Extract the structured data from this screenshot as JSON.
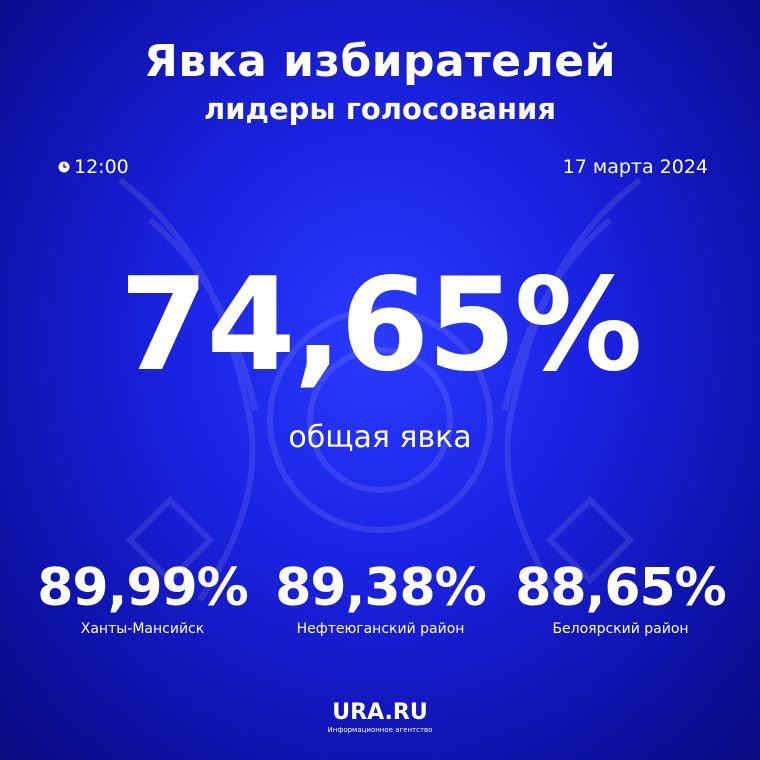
{
  "header": {
    "title": "Явка избирателей",
    "subtitle": "лидеры голосования"
  },
  "meta": {
    "time": "12:00",
    "date": "17 марта 2024"
  },
  "overall": {
    "value": "74,65%",
    "label": "общая явка"
  },
  "leaders": [
    {
      "value": "89,99%",
      "label": "Ханты-Мансийск"
    },
    {
      "value": "89,38%",
      "label": "Нефтеюганский район"
    },
    {
      "value": "88,65%",
      "label": "Белоярский район"
    }
  ],
  "logo": {
    "name": "URA.RU",
    "tagline": "Информационное агентство"
  },
  "colors": {
    "background": "#1a22e0",
    "text": "#ffffff"
  },
  "icons": {
    "time": "clock-icon",
    "background": "double-headed-eagle-emblem"
  }
}
